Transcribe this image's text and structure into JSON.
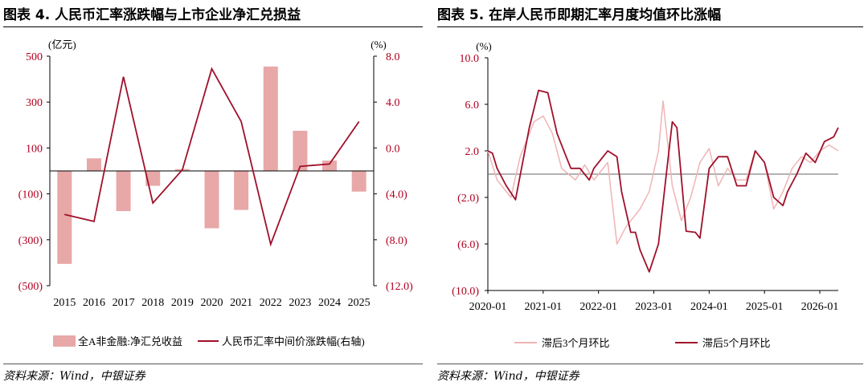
{
  "left_panel": {
    "title": "图表 4. 人民币汇率涨跌幅与上市企业净汇兑损益",
    "source": "资料来源：Wind，中银证券"
  },
  "right_panel": {
    "title": "图表 5. 在岸人民币即期汇率月度均值环比涨幅",
    "source": "资料来源：Wind，中银证券"
  },
  "colors": {
    "bar": "#e8a8a8",
    "line": "#a0102a",
    "line_light": "#f0b4b4",
    "axis_text": "#b00020"
  },
  "chart_data": [
    {
      "type": "bar",
      "categories": [
        "2015",
        "2016",
        "2017",
        "2018",
        "2019",
        "2020",
        "2021",
        "2022",
        "2023",
        "2024",
        "2025"
      ],
      "y_unit_label": "(亿元)",
      "y2_unit_label": "(%)",
      "ylim": [
        -500,
        500
      ],
      "y2lim": [
        -12,
        8
      ],
      "yticks": [
        500,
        300,
        100,
        -100,
        -300,
        -500
      ],
      "ytick_labels": [
        "500",
        "300",
        "100",
        "(100)",
        "(300)",
        "(500)"
      ],
      "y2ticks": [
        8,
        4,
        0,
        -4,
        -8,
        -12
      ],
      "y2tick_labels": [
        "8.0",
        "4.0",
        "0.0",
        "(4.0)",
        "(8.0)",
        "(12.0)"
      ],
      "series": [
        {
          "name": "全A非金融:净汇兑收益",
          "type": "bar",
          "axis": "left",
          "values": [
            -405,
            55,
            -175,
            -65,
            8,
            -250,
            -170,
            455,
            175,
            45,
            -90
          ]
        },
        {
          "name": "人民币汇率中间价涨跌幅(右轴)",
          "type": "line",
          "axis": "right",
          "values": [
            -5.8,
            -6.4,
            6.2,
            -4.8,
            -1.9,
            6.9,
            2.3,
            -8.4,
            -1.6,
            -1.4,
            2.3
          ]
        }
      ]
    },
    {
      "type": "line",
      "y_unit_label": "(%)",
      "ylim": [
        -10,
        10
      ],
      "yticks": [
        10,
        6,
        2,
        -2,
        -6,
        -10
      ],
      "ytick_labels": [
        "10.0",
        "6.0",
        "2.0",
        "(2.0)",
        "(6.0)",
        "(10.0)"
      ],
      "x_range": [
        "2020-01",
        "2026-05"
      ],
      "xtick_labels": [
        "2020-01",
        "2021-01",
        "2022-01",
        "2023-01",
        "2024-01",
        "2025-01",
        "2026-01"
      ],
      "series": [
        {
          "name": "滞后3个月环比",
          "color": "light",
          "x": [
            "2020-01",
            "2020-03",
            "2020-06",
            "2020-08",
            "2020-11",
            "2021-01",
            "2021-03",
            "2021-05",
            "2021-08",
            "2021-10",
            "2021-12",
            "2022-03",
            "2022-05",
            "2022-07",
            "2022-10",
            "2022-12",
            "2023-02",
            "2023-03",
            "2023-05",
            "2023-07",
            "2023-09",
            "2023-11",
            "2024-01",
            "2024-03",
            "2024-05",
            "2024-07",
            "2024-09",
            "2024-11",
            "2025-01",
            "2025-03",
            "2025-05",
            "2025-07",
            "2025-09",
            "2025-11",
            "2026-01",
            "2026-03",
            "2026-05"
          ],
          "values": [
            2.0,
            -0.5,
            -2.0,
            1.5,
            4.5,
            5.0,
            3.5,
            0.5,
            -0.5,
            0.8,
            -0.5,
            1.0,
            -6.0,
            -4.5,
            -3.0,
            -1.5,
            2.0,
            6.3,
            -1.0,
            -4.0,
            -2.0,
            1.0,
            2.2,
            -1.0,
            0.5,
            -0.5,
            -0.5,
            2.0,
            1.0,
            -3.0,
            -1.5,
            0.5,
            1.5,
            1.0,
            2.0,
            2.5,
            2.0
          ]
        },
        {
          "name": "滞后5个月环比",
          "color": "dark",
          "x": [
            "2020-01",
            "2020-02",
            "2020-03",
            "2020-05",
            "2020-07",
            "2020-10",
            "2020-12",
            "2021-02",
            "2021-04",
            "2021-06",
            "2021-07",
            "2021-09",
            "2021-11",
            "2021-12",
            "2022-02",
            "2022-03",
            "2022-05",
            "2022-06",
            "2022-08",
            "2022-09",
            "2022-10",
            "2022-12",
            "2023-02",
            "2023-04",
            "2023-05",
            "2023-06",
            "2023-08",
            "2023-10",
            "2023-11",
            "2024-01",
            "2024-03",
            "2024-05",
            "2024-07",
            "2024-09",
            "2024-11",
            "2025-01",
            "2025-03",
            "2025-05",
            "2025-06",
            "2025-08",
            "2025-10",
            "2025-12",
            "2026-02",
            "2026-04",
            "2026-05"
          ],
          "values": [
            2.0,
            1.8,
            0.5,
            -1.0,
            -2.2,
            4.0,
            7.2,
            7.0,
            3.5,
            1.5,
            0.5,
            0.5,
            -0.5,
            0.5,
            1.5,
            2.0,
            1.5,
            -1.5,
            -5.0,
            -5.0,
            -6.5,
            -8.4,
            -6.0,
            1.0,
            4.5,
            4.0,
            -4.9,
            -5.0,
            -5.5,
            0.5,
            1.5,
            1.5,
            -1.0,
            -1.0,
            2.0,
            1.0,
            -2.0,
            -2.7,
            -1.5,
            0.0,
            1.8,
            1.0,
            2.8,
            3.2,
            4.0
          ]
        }
      ]
    }
  ]
}
